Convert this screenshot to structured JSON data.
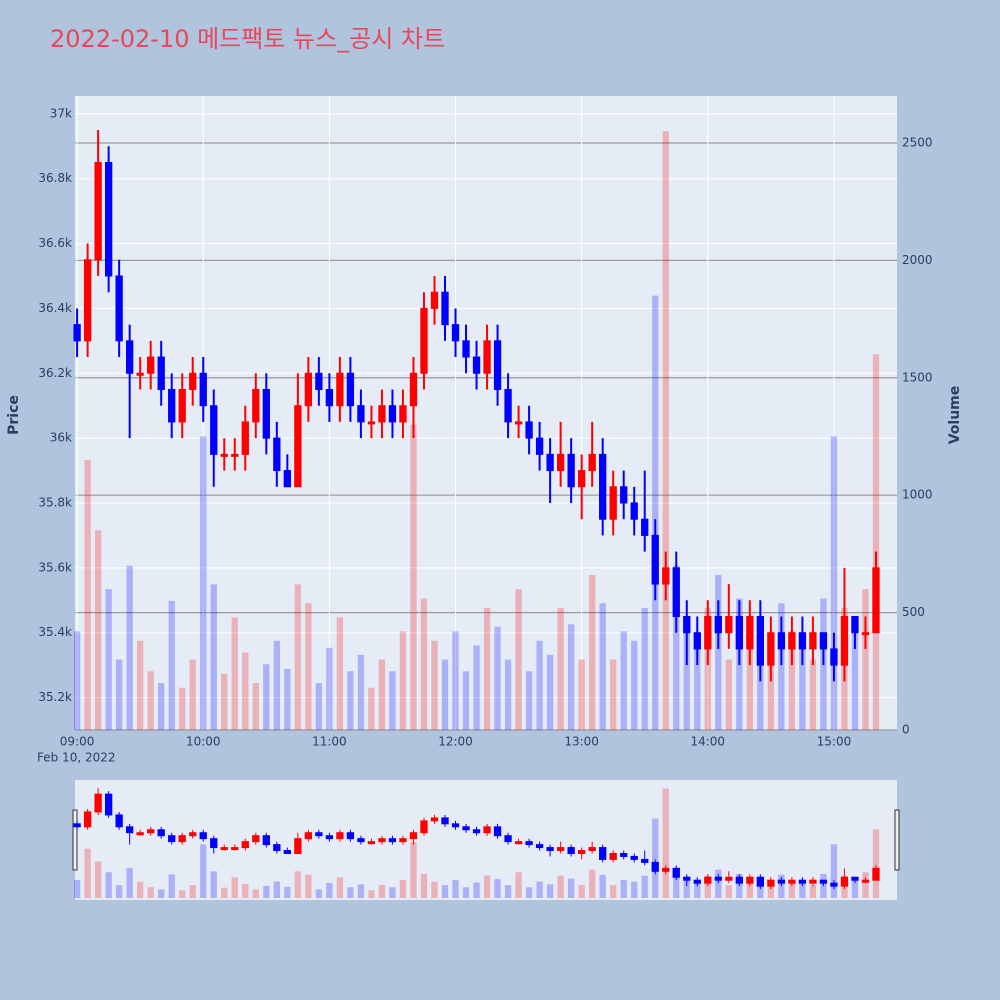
{
  "chart_data": {
    "type": "candlestick",
    "title": "2022-02-10 메드팩토 뉴스_공시 차트",
    "x": [
      "09:00",
      "09:05",
      "09:10",
      "09:15",
      "09:20",
      "09:25",
      "09:30",
      "09:35",
      "09:40",
      "09:45",
      "09:50",
      "09:55",
      "10:00",
      "10:05",
      "10:10",
      "10:15",
      "10:20",
      "10:25",
      "10:30",
      "10:35",
      "10:40",
      "10:45",
      "10:50",
      "10:55",
      "11:00",
      "11:05",
      "11:10",
      "11:15",
      "11:20",
      "11:25",
      "11:30",
      "11:35",
      "11:40",
      "11:45",
      "11:50",
      "11:55",
      "12:00",
      "12:05",
      "12:10",
      "12:15",
      "12:20",
      "12:25",
      "12:30",
      "12:35",
      "12:40",
      "12:45",
      "12:50",
      "12:55",
      "13:00",
      "13:05",
      "13:10",
      "13:15",
      "13:20",
      "13:25",
      "13:30",
      "13:35",
      "13:40",
      "13:45",
      "13:50",
      "13:55",
      "14:00",
      "14:05",
      "14:10",
      "14:15",
      "14:20",
      "14:25",
      "14:30",
      "14:35",
      "14:40",
      "14:45",
      "14:50",
      "14:55",
      "15:00",
      "15:05",
      "15:10",
      "15:15",
      "15:20"
    ],
    "open": [
      36350,
      36300,
      36550,
      36850,
      36500,
      36300,
      36200,
      36200,
      36250,
      36150,
      36050,
      36150,
      36200,
      36100,
      35950,
      35950,
      35950,
      36050,
      36150,
      36000,
      35900,
      35850,
      36100,
      36200,
      36150,
      36100,
      36200,
      36100,
      36050,
      36050,
      36100,
      36050,
      36100,
      36200,
      36400,
      36450,
      36350,
      36300,
      36250,
      36200,
      36300,
      36150,
      36050,
      36050,
      36000,
      35950,
      35900,
      35950,
      35850,
      35900,
      35950,
      35750,
      35850,
      35800,
      35750,
      35700,
      35550,
      35600,
      35450,
      35400,
      35350,
      35450,
      35400,
      35450,
      35350,
      35450,
      35300,
      35400,
      35350,
      35400,
      35350,
      35400,
      35350,
      35300,
      35450,
      35400,
      35400
    ],
    "high": [
      36400,
      36600,
      36950,
      36900,
      36550,
      36350,
      36250,
      36300,
      36300,
      36200,
      36200,
      36250,
      36250,
      36150,
      36000,
      36000,
      36100,
      36200,
      36200,
      36050,
      35950,
      36200,
      36250,
      36250,
      36200,
      36250,
      36250,
      36150,
      36100,
      36150,
      36150,
      36150,
      36250,
      36450,
      36500,
      36500,
      36400,
      36350,
      36300,
      36350,
      36350,
      36200,
      36100,
      36100,
      36050,
      36000,
      36050,
      36000,
      35950,
      36050,
      36000,
      35900,
      35900,
      35850,
      35900,
      35750,
      35650,
      35650,
      35500,
      35450,
      35500,
      35500,
      35550,
      35500,
      35500,
      35500,
      35450,
      35450,
      35450,
      35450,
      35450,
      35400,
      35400,
      35600,
      35450,
      35450,
      35650
    ],
    "low": [
      36250,
      36250,
      36500,
      36450,
      36250,
      36000,
      36150,
      36150,
      36100,
      36000,
      36000,
      36100,
      36050,
      35850,
      35900,
      35900,
      35900,
      36000,
      35950,
      35850,
      35850,
      35850,
      36050,
      36100,
      36050,
      36050,
      36050,
      36000,
      36000,
      36000,
      36000,
      36000,
      36000,
      36150,
      36350,
      36300,
      36250,
      36200,
      36150,
      36150,
      36100,
      36000,
      36000,
      35950,
      35900,
      35800,
      35850,
      35800,
      35750,
      35850,
      35700,
      35700,
      35750,
      35700,
      35650,
      35500,
      35500,
      35400,
      35300,
      35300,
      35300,
      35350,
      35350,
      35300,
      35300,
      35250,
      35250,
      35300,
      35300,
      35300,
      35300,
      35300,
      35250,
      35250,
      35350,
      35350,
      35400
    ],
    "close": [
      36300,
      36550,
      36850,
      36500,
      36300,
      36200,
      36200,
      36250,
      36150,
      36050,
      36150,
      36200,
      36100,
      35950,
      35950,
      35950,
      36050,
      36150,
      36000,
      35900,
      35850,
      36100,
      36200,
      36150,
      36100,
      36200,
      36100,
      36050,
      36050,
      36100,
      36050,
      36100,
      36200,
      36400,
      36450,
      36350,
      36300,
      36250,
      36200,
      36300,
      36150,
      36050,
      36050,
      36000,
      35950,
      35900,
      35950,
      35850,
      35900,
      35950,
      35750,
      35850,
      35800,
      35750,
      35700,
      35550,
      35600,
      35450,
      35400,
      35350,
      35450,
      35400,
      35450,
      35350,
      35450,
      35300,
      35400,
      35350,
      35400,
      35350,
      35400,
      35350,
      35300,
      35450,
      35400,
      35400,
      35600
    ],
    "volume": [
      420,
      1150,
      850,
      600,
      300,
      700,
      380,
      250,
      200,
      550,
      180,
      300,
      1250,
      620,
      240,
      480,
      330,
      200,
      280,
      380,
      260,
      620,
      540,
      200,
      350,
      480,
      250,
      320,
      180,
      300,
      250,
      420,
      1300,
      560,
      380,
      300,
      420,
      250,
      360,
      520,
      440,
      300,
      600,
      250,
      380,
      320,
      520,
      450,
      300,
      660,
      540,
      300,
      420,
      380,
      520,
      1850,
      2550,
      700,
      480,
      380,
      520,
      660,
      300,
      560,
      480,
      380,
      300,
      540,
      420,
      380,
      300,
      560,
      1250,
      520,
      420,
      600,
      1600
    ],
    "increasing_color": "#ff0000",
    "decreasing_color": "#0000ff",
    "xlim": [
      "08:59",
      "15:30"
    ],
    "xticks": [
      "09:00",
      "10:00",
      "11:00",
      "12:00",
      "13:00",
      "14:00",
      "15:00"
    ],
    "x_date_label": "Feb 10, 2022",
    "ylim": [
      35100,
      37055
    ],
    "yticks": [
      {
        "value": 35200,
        "label": "35.2k"
      },
      {
        "value": 35400,
        "label": "35.4k"
      },
      {
        "value": 35600,
        "label": "35.6k"
      },
      {
        "value": 35800,
        "label": "35.8k"
      },
      {
        "value": 36000,
        "label": "36k"
      },
      {
        "value": 36200,
        "label": "36.2k"
      },
      {
        "value": 36400,
        "label": "36.4k"
      },
      {
        "value": 36600,
        "label": "36.6k"
      },
      {
        "value": 36800,
        "label": "36.8k"
      },
      {
        "value": 37000,
        "label": "37k"
      }
    ],
    "y2lim": [
      0,
      2700
    ],
    "y2ticks": [
      0,
      500,
      1000,
      1500,
      2000,
      2500
    ],
    "ylabel": "Price",
    "y2label": "Volume",
    "grid": true
  }
}
